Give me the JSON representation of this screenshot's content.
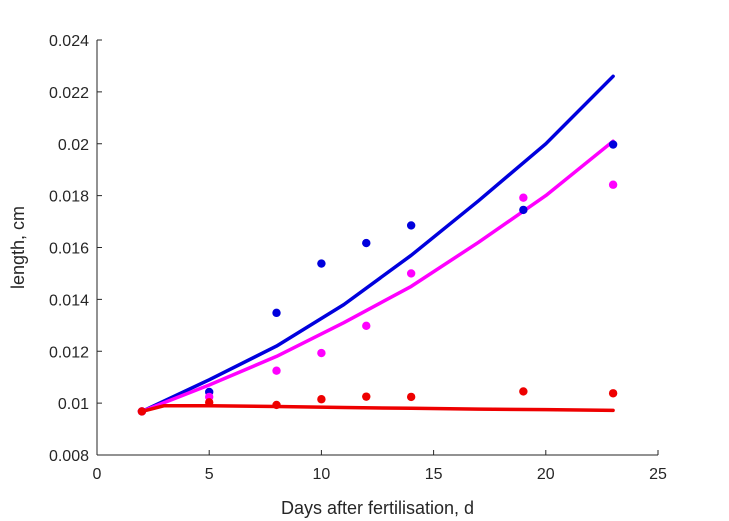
{
  "chart_data": {
    "type": "scatter",
    "title": "",
    "xlabel": "Days after fertilisation, d",
    "ylabel": "length, cm",
    "xlim": [
      0,
      25
    ],
    "ylim": [
      0.008,
      0.024
    ],
    "xticks": [
      0,
      5,
      10,
      15,
      20,
      25
    ],
    "xtick_labels": [
      "0",
      "5",
      "10",
      "15",
      "20",
      "25"
    ],
    "yticks": [
      0.008,
      0.01,
      0.012,
      0.014,
      0.016,
      0.018,
      0.02,
      0.022,
      0.024
    ],
    "ytick_labels": [
      "0.008",
      "0.01",
      "0.012",
      "0.014",
      "0.016",
      "0.018",
      "0.02",
      "0.022",
      "0.024"
    ],
    "grid": false,
    "legend": "none",
    "series": [
      {
        "color": "#0000dd",
        "points": {
          "x": [
            2,
            5,
            8,
            10,
            12,
            14,
            19,
            23
          ],
          "y": [
            0.00968,
            0.01043,
            0.01348,
            0.01538,
            0.01617,
            0.01685,
            0.01745,
            0.01997
          ]
        },
        "fit": {
          "x": [
            2,
            5,
            8,
            11,
            14,
            17,
            20,
            23
          ],
          "y": [
            0.00968,
            0.0109,
            0.0122,
            0.0138,
            0.0157,
            0.0178,
            0.02,
            0.0226
          ]
        }
      },
      {
        "color": "#ff00ff",
        "points": {
          "x": [
            2,
            5,
            8,
            10,
            12,
            14,
            19,
            23
          ],
          "y": [
            0.00968,
            0.01024,
            0.01125,
            0.01193,
            0.01298,
            0.015,
            0.01792,
            0.01842
          ]
        },
        "fit": {
          "x": [
            2,
            5,
            8,
            11,
            14,
            17,
            20,
            23
          ],
          "y": [
            0.00968,
            0.0107,
            0.0118,
            0.0131,
            0.0145,
            0.0162,
            0.018,
            0.0201
          ]
        }
      },
      {
        "color": "#ee0000",
        "points": {
          "x": [
            2,
            5,
            8,
            10,
            12,
            14,
            19,
            23
          ],
          "y": [
            0.00968,
            0.01003,
            0.00993,
            0.01015,
            0.01025,
            0.01024,
            0.01045,
            0.01038
          ]
        },
        "fit": {
          "x": [
            2,
            3,
            5,
            8,
            11,
            14,
            17,
            20,
            23
          ],
          "y": [
            0.00968,
            0.0099,
            0.0099,
            0.00987,
            0.00983,
            0.0098,
            0.00977,
            0.00975,
            0.00972
          ]
        }
      }
    ]
  }
}
